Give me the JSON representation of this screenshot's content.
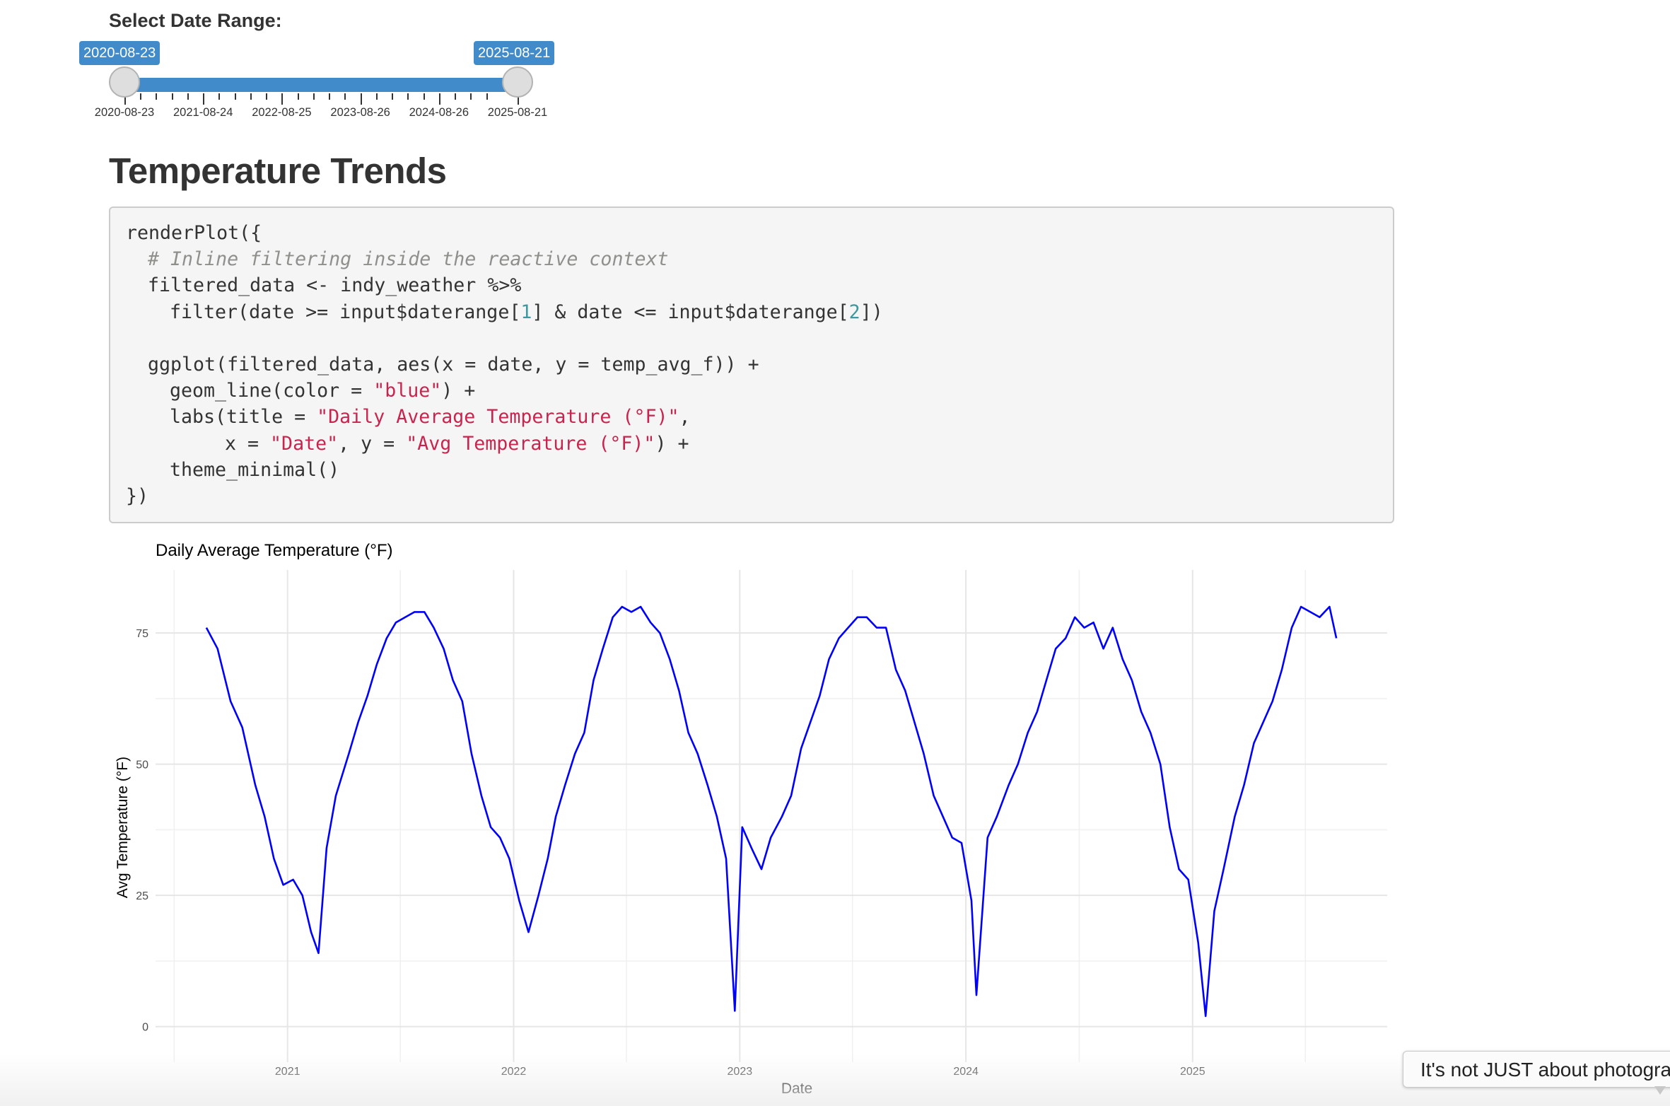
{
  "date_range": {
    "label": "Select Date Range:",
    "from": "2020-08-23",
    "to": "2025-08-21",
    "grid_labels": [
      "2020-08-23",
      "2021-08-24",
      "2022-08-25",
      "2023-08-26",
      "2024-08-26",
      "2025-08-21"
    ]
  },
  "section_title": "Temperature Trends",
  "code": {
    "lines": [
      {
        "indent": 0,
        "parts": [
          {
            "t": "renderPlot({"
          }
        ]
      },
      {
        "indent": 1,
        "parts": [
          {
            "t": "# Inline filtering inside the reactive context",
            "k": "c"
          }
        ]
      },
      {
        "indent": 1,
        "parts": [
          {
            "t": "filtered_data <- indy_weather %>%"
          }
        ]
      },
      {
        "indent": 2,
        "parts": [
          {
            "t": "filter(date >= input$daterange["
          },
          {
            "t": "1",
            "k": "n"
          },
          {
            "t": "] & date <= input$daterange["
          },
          {
            "t": "2",
            "k": "n"
          },
          {
            "t": "])"
          }
        ]
      },
      {
        "indent": 0,
        "parts": [
          {
            "t": ""
          }
        ]
      },
      {
        "indent": 1,
        "parts": [
          {
            "t": "ggplot(filtered_data, aes(x = date, y = temp_avg_f)) +"
          }
        ]
      },
      {
        "indent": 2,
        "parts": [
          {
            "t": "geom_line(color = "
          },
          {
            "t": "\"blue\"",
            "k": "s"
          },
          {
            "t": ") +"
          }
        ]
      },
      {
        "indent": 2,
        "parts": [
          {
            "t": "labs(title = "
          },
          {
            "t": "\"Daily Average Temperature (°F)\"",
            "k": "s"
          },
          {
            "t": ","
          }
        ]
      },
      {
        "indent": 3,
        "parts": [
          {
            "t": "x = "
          },
          {
            "t": "\"Date\"",
            "k": "s"
          },
          {
            "t": ", y = "
          },
          {
            "t": "\"Avg Temperature (°F)\"",
            "k": "s"
          },
          {
            "t": ") +"
          }
        ]
      },
      {
        "indent": 2,
        "parts": [
          {
            "t": "theme_minimal()"
          }
        ]
      },
      {
        "indent": 0,
        "parts": [
          {
            "t": "})"
          }
        ]
      }
    ]
  },
  "chart_data": {
    "type": "line",
    "title": "Daily Average Temperature (°F)",
    "xlabel": "Date",
    "ylabel": "Avg Temperature (°F)",
    "x_ticks": [
      "2021",
      "2022",
      "2023",
      "2024",
      "2025"
    ],
    "y_ticks": [
      0,
      25,
      50,
      75
    ],
    "xlim": [
      "2020-08-23",
      "2025-08-21"
    ],
    "ylim": [
      -3,
      87
    ],
    "grid": true,
    "series": [
      {
        "color": "#0000ff",
        "points": [
          [
            "2020-08-23",
            76
          ],
          [
            "2020-09-10",
            72
          ],
          [
            "2020-10-01",
            62
          ],
          [
            "2020-10-20",
            57
          ],
          [
            "2020-11-10",
            46
          ],
          [
            "2020-11-25",
            40
          ],
          [
            "2020-12-10",
            32
          ],
          [
            "2020-12-25",
            27
          ],
          [
            "2021-01-10",
            28
          ],
          [
            "2021-01-25",
            25
          ],
          [
            "2021-02-08",
            18
          ],
          [
            "2021-02-20",
            14
          ],
          [
            "2021-03-05",
            34
          ],
          [
            "2021-03-20",
            44
          ],
          [
            "2021-04-10",
            52
          ],
          [
            "2021-04-25",
            58
          ],
          [
            "2021-05-10",
            63
          ],
          [
            "2021-05-25",
            69
          ],
          [
            "2021-06-10",
            74
          ],
          [
            "2021-06-25",
            77
          ],
          [
            "2021-07-10",
            78
          ],
          [
            "2021-07-25",
            79
          ],
          [
            "2021-08-10",
            79
          ],
          [
            "2021-08-25",
            76
          ],
          [
            "2021-09-10",
            72
          ],
          [
            "2021-09-25",
            66
          ],
          [
            "2021-10-10",
            62
          ],
          [
            "2021-10-25",
            52
          ],
          [
            "2021-11-10",
            44
          ],
          [
            "2021-11-25",
            38
          ],
          [
            "2021-12-10",
            36
          ],
          [
            "2021-12-25",
            32
          ],
          [
            "2022-01-10",
            24
          ],
          [
            "2022-01-25",
            18
          ],
          [
            "2022-02-10",
            25
          ],
          [
            "2022-02-25",
            32
          ],
          [
            "2022-03-10",
            40
          ],
          [
            "2022-03-25",
            46
          ],
          [
            "2022-04-10",
            52
          ],
          [
            "2022-04-25",
            56
          ],
          [
            "2022-05-10",
            66
          ],
          [
            "2022-05-25",
            72
          ],
          [
            "2022-06-10",
            78
          ],
          [
            "2022-06-25",
            80
          ],
          [
            "2022-07-10",
            79
          ],
          [
            "2022-07-25",
            80
          ],
          [
            "2022-08-10",
            77
          ],
          [
            "2022-08-25",
            75
          ],
          [
            "2022-09-10",
            70
          ],
          [
            "2022-09-25",
            64
          ],
          [
            "2022-10-10",
            56
          ],
          [
            "2022-10-25",
            52
          ],
          [
            "2022-11-10",
            46
          ],
          [
            "2022-11-25",
            40
          ],
          [
            "2022-12-10",
            32
          ],
          [
            "2022-12-24",
            3
          ],
          [
            "2023-01-05",
            38
          ],
          [
            "2023-01-20",
            34
          ],
          [
            "2023-02-05",
            30
          ],
          [
            "2023-02-20",
            36
          ],
          [
            "2023-03-10",
            40
          ],
          [
            "2023-03-25",
            44
          ],
          [
            "2023-04-10",
            53
          ],
          [
            "2023-04-25",
            58
          ],
          [
            "2023-05-10",
            63
          ],
          [
            "2023-05-25",
            70
          ],
          [
            "2023-06-10",
            74
          ],
          [
            "2023-06-25",
            76
          ],
          [
            "2023-07-10",
            78
          ],
          [
            "2023-07-25",
            78
          ],
          [
            "2023-08-10",
            76
          ],
          [
            "2023-08-25",
            76
          ],
          [
            "2023-09-10",
            68
          ],
          [
            "2023-09-25",
            64
          ],
          [
            "2023-10-10",
            58
          ],
          [
            "2023-10-25",
            52
          ],
          [
            "2023-11-10",
            44
          ],
          [
            "2023-11-25",
            40
          ],
          [
            "2023-12-10",
            36
          ],
          [
            "2023-12-25",
            35
          ],
          [
            "2024-01-10",
            24
          ],
          [
            "2024-01-18",
            6
          ],
          [
            "2024-02-05",
            36
          ],
          [
            "2024-02-20",
            40
          ],
          [
            "2024-03-10",
            46
          ],
          [
            "2024-03-25",
            50
          ],
          [
            "2024-04-10",
            56
          ],
          [
            "2024-04-25",
            60
          ],
          [
            "2024-05-10",
            66
          ],
          [
            "2024-05-25",
            72
          ],
          [
            "2024-06-10",
            74
          ],
          [
            "2024-06-25",
            78
          ],
          [
            "2024-07-10",
            76
          ],
          [
            "2024-07-25",
            77
          ],
          [
            "2024-08-10",
            72
          ],
          [
            "2024-08-25",
            76
          ],
          [
            "2024-09-10",
            70
          ],
          [
            "2024-09-25",
            66
          ],
          [
            "2024-10-10",
            60
          ],
          [
            "2024-10-25",
            56
          ],
          [
            "2024-11-10",
            50
          ],
          [
            "2024-11-25",
            38
          ],
          [
            "2024-12-10",
            30
          ],
          [
            "2024-12-25",
            28
          ],
          [
            "2025-01-10",
            16
          ],
          [
            "2025-01-22",
            2
          ],
          [
            "2025-02-05",
            22
          ],
          [
            "2025-02-20",
            30
          ],
          [
            "2025-03-10",
            40
          ],
          [
            "2025-03-25",
            46
          ],
          [
            "2025-04-10",
            54
          ],
          [
            "2025-04-25",
            58
          ],
          [
            "2025-05-10",
            62
          ],
          [
            "2025-05-25",
            68
          ],
          [
            "2025-06-10",
            76
          ],
          [
            "2025-06-25",
            80
          ],
          [
            "2025-07-10",
            79
          ],
          [
            "2025-07-25",
            78
          ],
          [
            "2025-08-10",
            80
          ],
          [
            "2025-08-21",
            74
          ]
        ]
      }
    ]
  },
  "tooltip": {
    "text": "It's not JUST about photography"
  }
}
